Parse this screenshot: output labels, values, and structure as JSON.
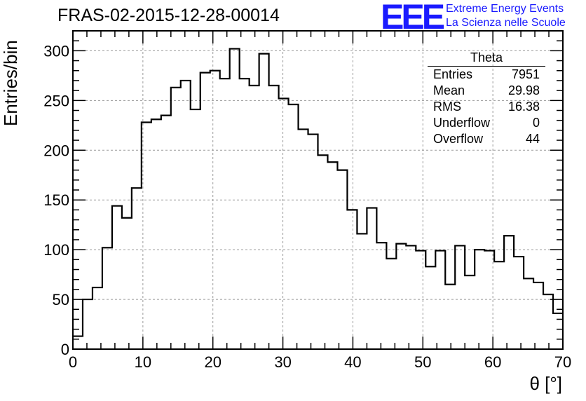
{
  "title": "FRAS-02-2015-12-28-00014",
  "logo": {
    "text": "EEE",
    "line1": "Extreme Energy Events",
    "line2": "La Scienza nelle Scuole",
    "color": "#1a1aff"
  },
  "stats_box": {
    "title": "Theta",
    "rows": [
      {
        "label": "Entries",
        "value": "7951"
      },
      {
        "label": "Mean",
        "value": "29.98"
      },
      {
        "label": "RMS",
        "value": "16.38"
      },
      {
        "label": "Underflow",
        "value": "0"
      },
      {
        "label": "Overflow",
        "value": "44"
      }
    ]
  },
  "chart_data": {
    "type": "bar",
    "style": "histogram-step",
    "title": "FRAS-02-2015-12-28-00014",
    "xlabel": "θ [°]",
    "ylabel": "Entries/bin",
    "xlim": [
      0,
      70
    ],
    "ylim": [
      0,
      320
    ],
    "bin_width": 1.4,
    "bin_edges_start": 0,
    "values": [
      13,
      50,
      62,
      102,
      144,
      132,
      162,
      228,
      231,
      235,
      263,
      270,
      241,
      278,
      280,
      272,
      302,
      272,
      265,
      297,
      265,
      252,
      246,
      221,
      216,
      195,
      188,
      180,
      140,
      116,
      142,
      107,
      91,
      106,
      104,
      99,
      83,
      99,
      65,
      104,
      74,
      100,
      99,
      88,
      114,
      93,
      71,
      67,
      55,
      36
    ],
    "xticks": [
      "0",
      "10",
      "20",
      "30",
      "40",
      "50",
      "60",
      "70"
    ],
    "yticks": [
      "0",
      "50",
      "100",
      "150",
      "200",
      "250",
      "300"
    ],
    "xtick_values": [
      0,
      10,
      20,
      30,
      40,
      50,
      60,
      70
    ],
    "ytick_values": [
      0,
      50,
      100,
      150,
      200,
      250,
      300
    ],
    "grid": true,
    "line_color": "#000000"
  }
}
